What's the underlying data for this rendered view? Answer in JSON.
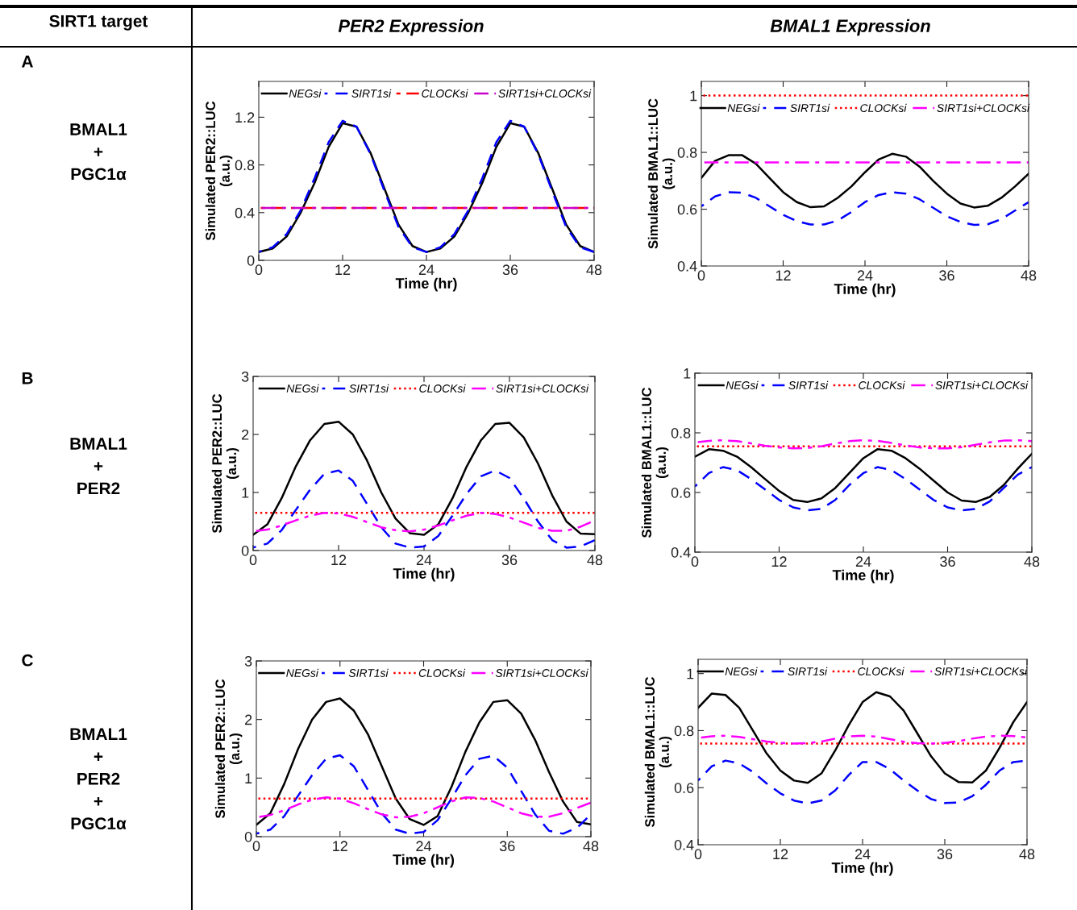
{
  "chart_data": [
    {
      "type": "other",
      "annotations": [
        "SIRT1 target",
        "PER2 Expression",
        "BMAL1 Expression",
        "A",
        "BMAL1\n+\nPGC1α",
        "B",
        "BMAL1\n+\nPER2",
        "C",
        "BMAL1\n+\nPER2\n+\nPGC1α"
      ]
    },
    {
      "type": "line",
      "xlabel": "Time (hr)",
      "ylabel": "Simulated PER2::LUC\n(a.u.)",
      "xlim": [
        0,
        48
      ],
      "xticks": [
        0,
        12,
        24,
        36,
        48
      ],
      "ylim": [
        0,
        1.5
      ],
      "yticks": [
        0,
        0.4,
        0.8,
        1.2
      ],
      "legend": "top",
      "grid": false,
      "x": [
        0,
        2,
        4,
        6,
        8,
        10,
        12,
        14,
        16,
        18,
        20,
        22,
        24,
        26,
        28,
        30,
        32,
        34,
        36,
        38,
        40,
        42,
        44,
        46,
        48
      ],
      "series": [
        {
          "name": "NEGsi",
          "color": "#000000",
          "line_style": "solid",
          "values": [
            0.07,
            0.1,
            0.2,
            0.4,
            0.65,
            0.95,
            1.15,
            1.12,
            0.9,
            0.6,
            0.3,
            0.12,
            0.07,
            0.1,
            0.2,
            0.4,
            0.65,
            0.95,
            1.15,
            1.12,
            0.9,
            0.6,
            0.3,
            0.12,
            0.07
          ]
        },
        {
          "name": "SIRT1si",
          "color": "#0000ff",
          "line_style": "dashed",
          "values": [
            0.07,
            0.11,
            0.22,
            0.42,
            0.69,
            0.99,
            1.17,
            1.12,
            0.89,
            0.58,
            0.28,
            0.11,
            0.07,
            0.11,
            0.22,
            0.42,
            0.69,
            0.99,
            1.17,
            1.12,
            0.89,
            0.58,
            0.28,
            0.11,
            0.07
          ]
        },
        {
          "name": "CLOCKsi",
          "color": "#ff0000",
          "line_style": "dashdot",
          "values": [
            0.44,
            0.44,
            0.44,
            0.44,
            0.44,
            0.44,
            0.44,
            0.44,
            0.44,
            0.44,
            0.44,
            0.44,
            0.44,
            0.44,
            0.44,
            0.44,
            0.44,
            0.44,
            0.44,
            0.44,
            0.44,
            0.44,
            0.44,
            0.44,
            0.44
          ]
        },
        {
          "name": "SIRT1si+CLOCKsi",
          "color": "#cc00cc",
          "line_style": "dashdot",
          "values": [
            0.44,
            0.44,
            0.44,
            0.44,
            0.44,
            0.44,
            0.44,
            0.44,
            0.44,
            0.44,
            0.44,
            0.44,
            0.44,
            0.44,
            0.44,
            0.44,
            0.44,
            0.44,
            0.44,
            0.44,
            0.44,
            0.44,
            0.44,
            0.44,
            0.44
          ]
        }
      ]
    },
    {
      "type": "line",
      "xlabel": "Time (hr)",
      "ylabel": "Simulated BMAL1::LUC\n(a.u.)",
      "xlim": [
        0,
        48
      ],
      "xticks": [
        0,
        12,
        24,
        36,
        48
      ],
      "ylim": [
        0.4,
        1.05
      ],
      "yticks": [
        0.4,
        0.6,
        0.8,
        1
      ],
      "legend": "top",
      "grid": false,
      "x": [
        0,
        2,
        4,
        6,
        8,
        10,
        12,
        14,
        16,
        18,
        20,
        22,
        24,
        26,
        28,
        30,
        32,
        34,
        36,
        38,
        40,
        42,
        44,
        46,
        48
      ],
      "series": [
        {
          "name": "NEGsi",
          "color": "#000000",
          "line_style": "solid",
          "values": [
            0.71,
            0.77,
            0.79,
            0.79,
            0.76,
            0.71,
            0.66,
            0.625,
            0.607,
            0.61,
            0.64,
            0.68,
            0.73,
            0.775,
            0.795,
            0.785,
            0.75,
            0.7,
            0.655,
            0.62,
            0.606,
            0.612,
            0.64,
            0.68,
            0.725
          ]
        },
        {
          "name": "SIRT1si",
          "color": "#0000ff",
          "line_style": "dashed",
          "values": [
            0.61,
            0.645,
            0.66,
            0.658,
            0.64,
            0.61,
            0.58,
            0.558,
            0.546,
            0.546,
            0.56,
            0.59,
            0.625,
            0.65,
            0.66,
            0.655,
            0.635,
            0.605,
            0.575,
            0.555,
            0.545,
            0.547,
            0.565,
            0.595,
            0.625
          ]
        },
        {
          "name": "CLOCKsi",
          "color": "#ff0000",
          "line_style": "dotted",
          "values": [
            1,
            1,
            1,
            1,
            1,
            1,
            1,
            1,
            1,
            1,
            1,
            1,
            1,
            1,
            1,
            1,
            1,
            1,
            1,
            1,
            1,
            1,
            1,
            1,
            1
          ]
        },
        {
          "name": "SIRT1si+CLOCKsi",
          "color": "#ff00ff",
          "line_style": "dashdot",
          "values": [
            0.765,
            0.765,
            0.765,
            0.765,
            0.765,
            0.765,
            0.765,
            0.765,
            0.765,
            0.765,
            0.765,
            0.765,
            0.765,
            0.765,
            0.765,
            0.765,
            0.765,
            0.765,
            0.765,
            0.765,
            0.765,
            0.765,
            0.765,
            0.765,
            0.765
          ]
        }
      ]
    },
    {
      "type": "line",
      "xlabel": "Time (hr)",
      "ylabel": "Simulated PER2::LUC\n(a.u.)",
      "xlim": [
        0,
        48
      ],
      "xticks": [
        0,
        12,
        24,
        36,
        48
      ],
      "ylim": [
        0,
        3
      ],
      "yticks": [
        0,
        1,
        2,
        3
      ],
      "legend": "top",
      "grid": false,
      "x": [
        0,
        2,
        4,
        6,
        8,
        10,
        12,
        14,
        16,
        18,
        20,
        22,
        24,
        26,
        28,
        30,
        32,
        34,
        36,
        38,
        40,
        42,
        44,
        46,
        48
      ],
      "series": [
        {
          "name": "NEGsi",
          "color": "#000000",
          "line_style": "solid",
          "values": [
            0.27,
            0.45,
            0.9,
            1.45,
            1.9,
            2.18,
            2.22,
            2.0,
            1.55,
            1.0,
            0.55,
            0.3,
            0.27,
            0.45,
            0.9,
            1.45,
            1.9,
            2.18,
            2.2,
            1.95,
            1.5,
            0.95,
            0.5,
            0.29,
            0.28
          ]
        },
        {
          "name": "SIRT1si",
          "color": "#0000ff",
          "line_style": "dashed",
          "values": [
            0.05,
            0.12,
            0.35,
            0.7,
            1.05,
            1.32,
            1.38,
            1.2,
            0.8,
            0.4,
            0.12,
            0.05,
            0.07,
            0.25,
            0.6,
            0.98,
            1.28,
            1.38,
            1.25,
            0.9,
            0.5,
            0.18,
            0.05,
            0.07,
            0.18
          ]
        },
        {
          "name": "CLOCKsi",
          "color": "#ff0000",
          "line_style": "dotted",
          "values": [
            0.65,
            0.65,
            0.65,
            0.65,
            0.65,
            0.65,
            0.65,
            0.65,
            0.65,
            0.65,
            0.65,
            0.65,
            0.65,
            0.65,
            0.65,
            0.65,
            0.65,
            0.65,
            0.65,
            0.65,
            0.65,
            0.65,
            0.65,
            0.65,
            0.65
          ]
        },
        {
          "name": "SIRT1si+CLOCKsi",
          "color": "#ff00ff",
          "line_style": "dashdot",
          "values": [
            0.33,
            0.36,
            0.43,
            0.52,
            0.6,
            0.65,
            0.64,
            0.58,
            0.49,
            0.4,
            0.35,
            0.33,
            0.36,
            0.43,
            0.52,
            0.6,
            0.65,
            0.63,
            0.57,
            0.48,
            0.39,
            0.34,
            0.34,
            0.41,
            0.52
          ]
        }
      ]
    },
    {
      "type": "line",
      "xlabel": "Time (hr)",
      "ylabel": "Simulated BMAL1::LUC\n(a.u.)",
      "xlim": [
        0,
        48
      ],
      "xticks": [
        0,
        12,
        24,
        36,
        48
      ],
      "ylim": [
        0.4,
        1
      ],
      "yticks": [
        0.4,
        0.6,
        0.8,
        1
      ],
      "legend": "top",
      "grid": false,
      "x": [
        0,
        2,
        4,
        6,
        8,
        10,
        12,
        14,
        16,
        18,
        20,
        22,
        24,
        26,
        28,
        30,
        32,
        34,
        36,
        38,
        40,
        42,
        44,
        46,
        48
      ],
      "series": [
        {
          "name": "NEGsi",
          "color": "#000000",
          "line_style": "solid",
          "values": [
            0.72,
            0.745,
            0.74,
            0.72,
            0.685,
            0.645,
            0.605,
            0.575,
            0.568,
            0.58,
            0.615,
            0.665,
            0.715,
            0.745,
            0.74,
            0.715,
            0.68,
            0.64,
            0.6,
            0.573,
            0.568,
            0.585,
            0.625,
            0.68,
            0.73
          ]
        },
        {
          "name": "SIRT1si",
          "color": "#0000ff",
          "line_style": "dashed",
          "values": [
            0.62,
            0.665,
            0.685,
            0.675,
            0.645,
            0.61,
            0.575,
            0.55,
            0.54,
            0.545,
            0.575,
            0.625,
            0.665,
            0.685,
            0.675,
            0.645,
            0.61,
            0.575,
            0.55,
            0.54,
            0.545,
            0.57,
            0.615,
            0.66,
            0.685
          ]
        },
        {
          "name": "CLOCKsi",
          "color": "#ff0000",
          "line_style": "dotted",
          "values": [
            0.755,
            0.755,
            0.755,
            0.755,
            0.755,
            0.755,
            0.755,
            0.755,
            0.755,
            0.755,
            0.755,
            0.755,
            0.755,
            0.755,
            0.755,
            0.755,
            0.755,
            0.755,
            0.755,
            0.755,
            0.755,
            0.755,
            0.755,
            0.755,
            0.755
          ]
        },
        {
          "name": "SIRT1si+CLOCKsi",
          "color": "#ff00ff",
          "line_style": "dashdot",
          "values": [
            0.768,
            0.773,
            0.775,
            0.772,
            0.765,
            0.757,
            0.751,
            0.748,
            0.749,
            0.755,
            0.764,
            0.772,
            0.775,
            0.773,
            0.766,
            0.758,
            0.751,
            0.748,
            0.748,
            0.752,
            0.76,
            0.768,
            0.774,
            0.775,
            0.772
          ]
        }
      ]
    },
    {
      "type": "line",
      "xlabel": "Time (hr)",
      "ylabel": "Simulated PER2::LUC\n(a.u.)",
      "xlim": [
        0,
        48
      ],
      "xticks": [
        0,
        12,
        24,
        36,
        48
      ],
      "ylim": [
        0,
        3
      ],
      "yticks": [
        0,
        1,
        2,
        3
      ],
      "legend": "top",
      "grid": false,
      "x": [
        0,
        2,
        4,
        6,
        8,
        10,
        12,
        14,
        16,
        18,
        20,
        22,
        24,
        26,
        28,
        30,
        32,
        34,
        36,
        38,
        40,
        42,
        44,
        46,
        48
      ],
      "series": [
        {
          "name": "NEGsi",
          "color": "#000000",
          "line_style": "solid",
          "values": [
            0.2,
            0.4,
            0.9,
            1.5,
            2.0,
            2.3,
            2.36,
            2.15,
            1.75,
            1.2,
            0.65,
            0.3,
            0.2,
            0.35,
            0.85,
            1.45,
            1.95,
            2.3,
            2.33,
            2.1,
            1.65,
            1.1,
            0.6,
            0.25,
            0.21
          ]
        },
        {
          "name": "SIRT1si",
          "color": "#0000ff",
          "line_style": "dashed",
          "values": [
            0.05,
            0.12,
            0.35,
            0.7,
            1.05,
            1.33,
            1.39,
            1.2,
            0.8,
            0.4,
            0.12,
            0.05,
            0.08,
            0.28,
            0.65,
            1.05,
            1.33,
            1.38,
            1.18,
            0.78,
            0.38,
            0.1,
            0.05,
            0.15,
            0.38
          ]
        },
        {
          "name": "CLOCKsi",
          "color": "#ff0000",
          "line_style": "dotted",
          "values": [
            0.65,
            0.65,
            0.65,
            0.65,
            0.65,
            0.65,
            0.65,
            0.65,
            0.65,
            0.65,
            0.65,
            0.65,
            0.65,
            0.65,
            0.65,
            0.65,
            0.65,
            0.65,
            0.65,
            0.65,
            0.65,
            0.65,
            0.65,
            0.65,
            0.65
          ]
        },
        {
          "name": "SIRT1si+CLOCKsi",
          "color": "#ff00ff",
          "line_style": "dashdot",
          "values": [
            0.33,
            0.37,
            0.45,
            0.55,
            0.63,
            0.67,
            0.65,
            0.57,
            0.47,
            0.38,
            0.33,
            0.34,
            0.4,
            0.5,
            0.6,
            0.67,
            0.66,
            0.6,
            0.5,
            0.4,
            0.34,
            0.34,
            0.4,
            0.49,
            0.58
          ]
        }
      ]
    },
    {
      "type": "line",
      "xlabel": "Time (hr)",
      "ylabel": "Simulated BMAL1::LUC\n(a.u.)",
      "xlim": [
        0,
        48
      ],
      "xticks": [
        0,
        12,
        24,
        36,
        48
      ],
      "ylim": [
        0.4,
        1.05
      ],
      "yticks": [
        0.4,
        0.6,
        0.8,
        1
      ],
      "legend": "top",
      "grid": false,
      "x": [
        0,
        2,
        4,
        6,
        8,
        10,
        12,
        14,
        16,
        18,
        20,
        22,
        24,
        26,
        28,
        30,
        32,
        34,
        36,
        38,
        40,
        42,
        44,
        46,
        48
      ],
      "series": [
        {
          "name": "NEGsi",
          "color": "#000000",
          "line_style": "solid",
          "values": [
            0.88,
            0.93,
            0.925,
            0.88,
            0.8,
            0.72,
            0.66,
            0.625,
            0.617,
            0.65,
            0.73,
            0.82,
            0.9,
            0.935,
            0.92,
            0.87,
            0.79,
            0.71,
            0.65,
            0.62,
            0.618,
            0.66,
            0.74,
            0.83,
            0.9
          ]
        },
        {
          "name": "SIRT1si",
          "color": "#0000ff",
          "line_style": "dashed",
          "values": [
            0.625,
            0.675,
            0.695,
            0.685,
            0.655,
            0.615,
            0.58,
            0.555,
            0.545,
            0.555,
            0.59,
            0.645,
            0.69,
            0.69,
            0.665,
            0.625,
            0.59,
            0.56,
            0.546,
            0.548,
            0.57,
            0.61,
            0.66,
            0.69,
            0.695
          ]
        },
        {
          "name": "CLOCKsi",
          "color": "#ff0000",
          "line_style": "dotted",
          "values": [
            0.755,
            0.755,
            0.755,
            0.755,
            0.755,
            0.755,
            0.755,
            0.755,
            0.755,
            0.755,
            0.755,
            0.755,
            0.755,
            0.755,
            0.755,
            0.755,
            0.755,
            0.755,
            0.755,
            0.755,
            0.755,
            0.755,
            0.755,
            0.755,
            0.755
          ]
        },
        {
          "name": "SIRT1si+CLOCKsi",
          "color": "#ff00ff",
          "line_style": "dashdot",
          "values": [
            0.775,
            0.78,
            0.782,
            0.778,
            0.77,
            0.762,
            0.757,
            0.755,
            0.756,
            0.762,
            0.772,
            0.78,
            0.782,
            0.779,
            0.77,
            0.761,
            0.756,
            0.755,
            0.757,
            0.763,
            0.772,
            0.779,
            0.782,
            0.781,
            0.776
          ]
        }
      ]
    }
  ]
}
